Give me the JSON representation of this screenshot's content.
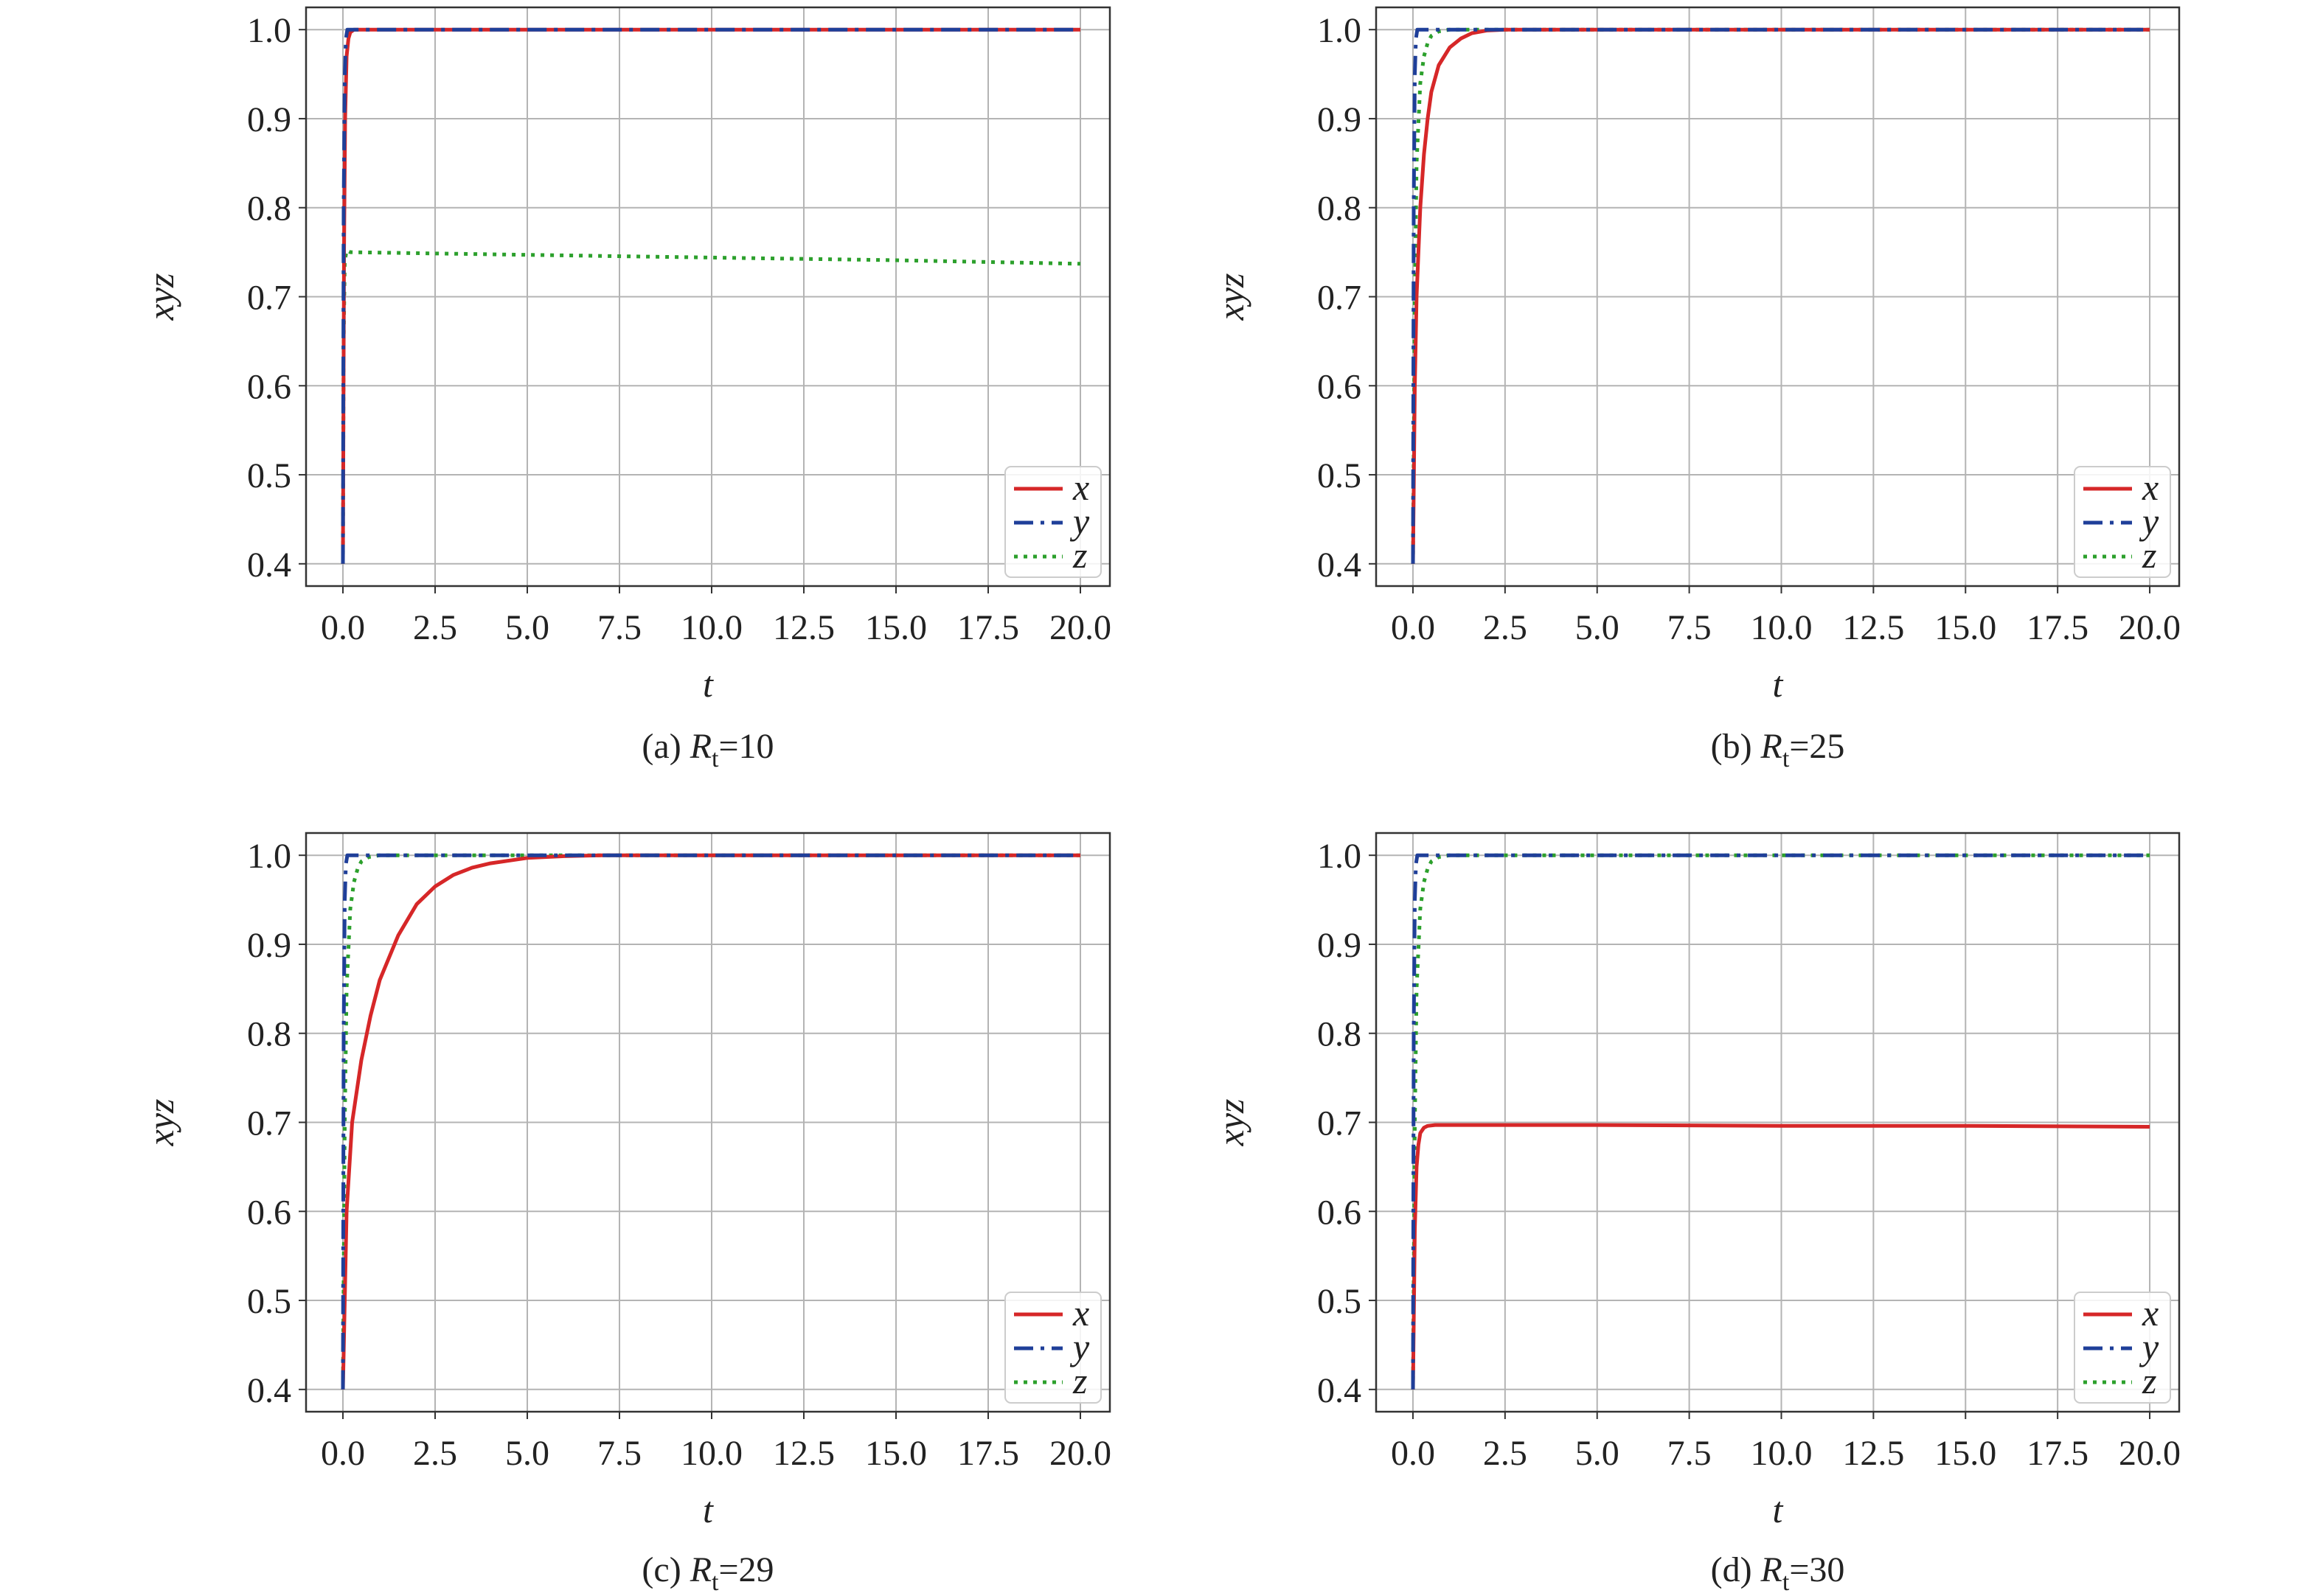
{
  "colors": {
    "x": "#d62728",
    "y": "#1f3f99",
    "z": "#2ca02c",
    "grid": "#b4b4b4",
    "frame": "#333333"
  },
  "legend_labels": [
    "x",
    "y",
    "z"
  ],
  "chart_data": [
    {
      "type": "line",
      "caption": {
        "prefix": "(a) ",
        "var": "R",
        "sub": "t",
        "suffix": "=10"
      },
      "xlabel": "t",
      "ylabel": "xyz",
      "xlim": [
        -1.0,
        20.8
      ],
      "ylim": [
        0.375,
        1.025
      ],
      "xticks": [
        "0.0",
        "2.5",
        "5.0",
        "7.5",
        "10.0",
        "12.5",
        "15.0",
        "17.5",
        "20.0"
      ],
      "yticks": [
        "0.4",
        "0.5",
        "0.6",
        "0.7",
        "0.8",
        "0.9",
        "1.0"
      ],
      "grid": true,
      "legend": "bottom-right",
      "series": [
        {
          "name": "x",
          "style": "solid",
          "x": [
            0,
            0.03,
            0.06,
            0.1,
            0.15,
            0.2,
            0.3,
            0.5,
            1,
            20
          ],
          "y": [
            0.4,
            0.75,
            0.9,
            0.97,
            0.99,
            0.997,
            1.0,
            1.0,
            1.0,
            1.0
          ]
        },
        {
          "name": "y",
          "style": "dashdot",
          "x": [
            0,
            0.02,
            0.05,
            0.08,
            0.12,
            0.2,
            20
          ],
          "y": [
            0.4,
            0.8,
            0.95,
            0.99,
            1.0,
            1.0,
            1.0
          ]
        },
        {
          "name": "z",
          "style": "dotted",
          "x": [
            0,
            0.02,
            0.05,
            0.1,
            0.2,
            5,
            10,
            15,
            20
          ],
          "y": [
            0.4,
            0.65,
            0.74,
            0.752,
            0.75,
            0.747,
            0.744,
            0.741,
            0.737
          ]
        }
      ]
    },
    {
      "type": "line",
      "caption": {
        "prefix": "(b) ",
        "var": "R",
        "sub": "t",
        "suffix": "=25"
      },
      "xlabel": "t",
      "ylabel": "xyz",
      "xlim": [
        -1.0,
        20.8
      ],
      "ylim": [
        0.375,
        1.025
      ],
      "xticks": [
        "0.0",
        "2.5",
        "5.0",
        "7.5",
        "10.0",
        "12.5",
        "15.0",
        "17.5",
        "20.0"
      ],
      "yticks": [
        "0.4",
        "0.5",
        "0.6",
        "0.7",
        "0.8",
        "0.9",
        "1.0"
      ],
      "grid": true,
      "legend": "bottom-right",
      "series": [
        {
          "name": "x",
          "style": "solid",
          "x": [
            0,
            0.05,
            0.1,
            0.2,
            0.3,
            0.4,
            0.5,
            0.7,
            1.0,
            1.3,
            1.6,
            2.0,
            2.5,
            20
          ],
          "y": [
            0.4,
            0.6,
            0.7,
            0.8,
            0.86,
            0.9,
            0.93,
            0.96,
            0.98,
            0.99,
            0.996,
            0.999,
            1.0,
            1.0
          ]
        },
        {
          "name": "y",
          "style": "dashdot",
          "x": [
            0,
            0.02,
            0.05,
            0.08,
            0.12,
            0.2,
            20
          ],
          "y": [
            0.4,
            0.8,
            0.95,
            0.99,
            1.0,
            1.0,
            1.0
          ]
        },
        {
          "name": "z",
          "style": "dotted",
          "x": [
            0,
            0.05,
            0.1,
            0.2,
            0.3,
            0.4,
            0.5,
            0.7,
            1.0,
            20
          ],
          "y": [
            0.4,
            0.7,
            0.85,
            0.94,
            0.97,
            0.985,
            0.993,
            0.998,
            1.0,
            1.0
          ]
        }
      ]
    },
    {
      "type": "line",
      "caption": {
        "prefix": "(c) ",
        "var": "R",
        "sub": "t",
        "suffix": "=29"
      },
      "xlabel": "t",
      "ylabel": "xyz",
      "xlim": [
        -1.0,
        20.8
      ],
      "ylim": [
        0.375,
        1.025
      ],
      "xticks": [
        "0.0",
        "2.5",
        "5.0",
        "7.5",
        "10.0",
        "12.5",
        "15.0",
        "17.5",
        "20.0"
      ],
      "yticks": [
        "0.4",
        "0.5",
        "0.6",
        "0.7",
        "0.8",
        "0.9",
        "1.0"
      ],
      "grid": true,
      "legend": "bottom-right",
      "series": [
        {
          "name": "x",
          "style": "solid",
          "x": [
            0,
            0.1,
            0.25,
            0.5,
            0.75,
            1.0,
            1.5,
            2.0,
            2.5,
            3.0,
            3.5,
            4.0,
            5.0,
            6.0,
            7.0,
            20
          ],
          "y": [
            0.4,
            0.6,
            0.7,
            0.77,
            0.82,
            0.86,
            0.91,
            0.945,
            0.965,
            0.978,
            0.986,
            0.991,
            0.997,
            0.999,
            1.0,
            1.0
          ]
        },
        {
          "name": "y",
          "style": "dashdot",
          "x": [
            0,
            0.02,
            0.05,
            0.08,
            0.12,
            0.2,
            20
          ],
          "y": [
            0.4,
            0.8,
            0.95,
            0.99,
            1.0,
            1.0,
            1.0
          ]
        },
        {
          "name": "z",
          "style": "dotted",
          "x": [
            0,
            0.05,
            0.1,
            0.2,
            0.3,
            0.4,
            0.5,
            0.7,
            1.0,
            20
          ],
          "y": [
            0.4,
            0.7,
            0.85,
            0.94,
            0.97,
            0.985,
            0.993,
            0.998,
            1.0,
            1.0
          ]
        }
      ]
    },
    {
      "type": "line",
      "caption": {
        "prefix": "(d) ",
        "var": "R",
        "sub": "t",
        "suffix": "=30"
      },
      "xlabel": "t",
      "ylabel": "xyz",
      "xlim": [
        -1.0,
        20.8
      ],
      "ylim": [
        0.375,
        1.025
      ],
      "xticks": [
        "0.0",
        "2.5",
        "5.0",
        "7.5",
        "10.0",
        "12.5",
        "15.0",
        "17.5",
        "20.0"
      ],
      "yticks": [
        "0.4",
        "0.5",
        "0.6",
        "0.7",
        "0.8",
        "0.9",
        "1.0"
      ],
      "grid": true,
      "legend": "bottom-right",
      "series": [
        {
          "name": "x",
          "style": "solid",
          "x": [
            0,
            0.05,
            0.1,
            0.15,
            0.2,
            0.3,
            0.4,
            0.6,
            1.0,
            5,
            10,
            15,
            20
          ],
          "y": [
            0.4,
            0.58,
            0.65,
            0.675,
            0.688,
            0.694,
            0.696,
            0.697,
            0.697,
            0.697,
            0.696,
            0.696,
            0.695
          ]
        },
        {
          "name": "y",
          "style": "dashdot",
          "x": [
            0,
            0.02,
            0.05,
            0.08,
            0.12,
            0.2,
            20
          ],
          "y": [
            0.4,
            0.8,
            0.95,
            0.99,
            1.0,
            1.0,
            1.0
          ]
        },
        {
          "name": "z",
          "style": "dotted",
          "x": [
            0,
            0.05,
            0.1,
            0.2,
            0.3,
            0.4,
            0.5,
            0.7,
            1.0,
            20
          ],
          "y": [
            0.4,
            0.7,
            0.85,
            0.94,
            0.97,
            0.985,
            0.993,
            0.998,
            1.0,
            1.0
          ]
        }
      ]
    }
  ]
}
